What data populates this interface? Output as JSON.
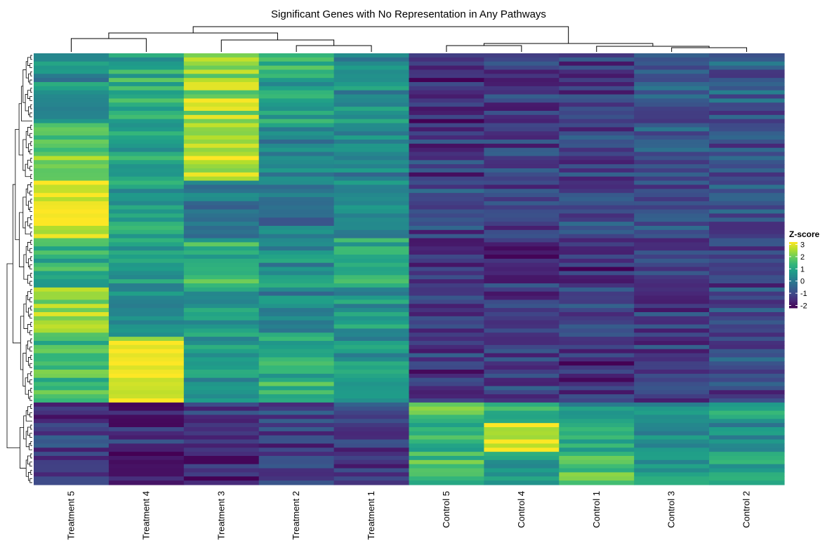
{
  "chart_data": {
    "type": "heatmap",
    "title": "Significant Genes with No Representation in Any Pathways",
    "columns": [
      "Treatment 5",
      "Treatment 4",
      "Treatment 3",
      "Treatment 2",
      "Treatment 1",
      "Control 5",
      "Control 4",
      "Control 1",
      "Control 3",
      "Control 2"
    ],
    "row_labels_shown": false,
    "row_dendrogram": true,
    "column_dendrogram": true,
    "colorscale": "viridis",
    "legend": {
      "title": "Z-score",
      "position": "right",
      "ticks": [
        3,
        2,
        1,
        0,
        -1,
        -2
      ],
      "range": [
        -2.2,
        3.2
      ]
    },
    "row_blocks": [
      {
        "rows": 17,
        "values": [
          0.4,
          1.2,
          2.4,
          1.0,
          0.5,
          -1.5,
          -1.3,
          -1.2,
          -0.8,
          -0.7
        ]
      },
      {
        "rows": 14,
        "values": [
          2.0,
          0.9,
          2.6,
          0.3,
          0.2,
          -1.2,
          -1.1,
          -1.2,
          -0.9,
          -0.8
        ]
      },
      {
        "rows": 14,
        "values": [
          3.0,
          1.0,
          0.0,
          -0.2,
          0.5,
          -1.0,
          -1.2,
          -1.0,
          -0.8,
          -0.9
        ]
      },
      {
        "rows": 12,
        "values": [
          1.2,
          0.6,
          1.3,
          0.5,
          1.2,
          -1.6,
          -1.4,
          -1.5,
          -1.3,
          -1.3
        ]
      },
      {
        "rows": 12,
        "values": [
          2.2,
          0.4,
          0.7,
          0.3,
          0.6,
          -1.3,
          -1.4,
          -1.1,
          -1.3,
          -1.0
        ]
      },
      {
        "rows": 16,
        "values": [
          1.5,
          2.9,
          0.8,
          1.2,
          0.6,
          -1.3,
          -1.2,
          -1.4,
          -1.1,
          -1.0
        ]
      },
      {
        "rows": 5,
        "values": [
          -1.5,
          -1.8,
          -1.3,
          -1.0,
          -1.0,
          1.8,
          1.0,
          0.6,
          0.4,
          0.8
        ]
      },
      {
        "rows": 7,
        "values": [
          -1.2,
          -1.4,
          -1.5,
          -1.2,
          -1.2,
          1.0,
          2.8,
          1.3,
          0.6,
          0.5
        ]
      },
      {
        "rows": 8,
        "values": [
          -1.3,
          -2.0,
          -1.6,
          -1.3,
          -1.1,
          1.5,
          0.6,
          1.8,
          0.8,
          1.2
        ]
      }
    ]
  }
}
